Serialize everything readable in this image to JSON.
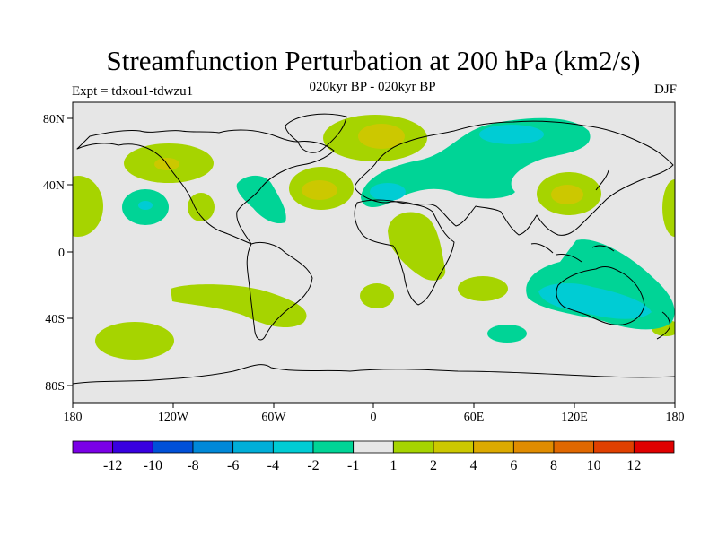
{
  "title": "Streamfunction Perturbation at 200 hPa (km2/s)",
  "subtitle": "020kyr BP - 020kyr BP",
  "left_label": "Expt = tdxou1-tdwzu1",
  "right_label": "DJF",
  "map": {
    "ocean_color": "#e6e6e6",
    "y_ticks": [
      "80N",
      "40N",
      "0",
      "40S",
      "80S"
    ],
    "x_ticks": [
      "180",
      "120W",
      "60W",
      "0",
      "60E",
      "120E",
      "180"
    ],
    "regions": [
      {
        "name": "north-pacific-high",
        "fill": "#a6d400"
      },
      {
        "name": "tropical-pacific-low",
        "fill": "#00d4a6"
      },
      {
        "name": "mexico-high",
        "fill": "#a6d400"
      },
      {
        "name": "east-pacific-high",
        "fill": "#a6d400"
      },
      {
        "name": "north-atlantic-high",
        "fill": "#a6d400"
      },
      {
        "name": "arctic-atlantic-high",
        "fill": "#a6d400"
      },
      {
        "name": "eurasia-low",
        "fill": "#00d4a6"
      },
      {
        "name": "africa-high",
        "fill": "#a6d400"
      },
      {
        "name": "east-asia-high",
        "fill": "#a6d400"
      },
      {
        "name": "australia-low",
        "fill": "#00d4a6"
      },
      {
        "name": "south-pacific-high",
        "fill": "#a6d400"
      }
    ]
  },
  "legend": {
    "colors": [
      "#7a00e6",
      "#3800e0",
      "#0050d8",
      "#0088d8",
      "#00aed8",
      "#00ccd4",
      "#00d496",
      "#e6e6e6",
      "#a6d400",
      "#ccc800",
      "#dcaa00",
      "#e08c00",
      "#e06800",
      "#e04000",
      "#e00000"
    ],
    "labels": [
      "-12",
      "-10",
      "-8",
      "-6",
      "-4",
      "-2",
      "-1",
      "1",
      "2",
      "4",
      "6",
      "8",
      "10",
      "12"
    ]
  }
}
